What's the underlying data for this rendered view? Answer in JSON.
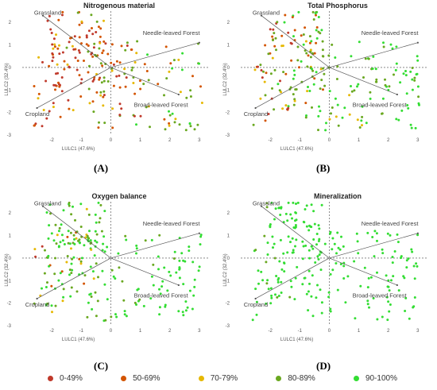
{
  "panel_labels": [
    "(A)",
    "(B)",
    "(C)",
    "(D)"
  ],
  "legend": [
    {
      "label": "0-49%",
      "color": "#c0392b"
    },
    {
      "label": "50-69%",
      "color": "#d35400"
    },
    {
      "label": "70-79%",
      "color": "#e6b800"
    },
    {
      "label": "80-89%",
      "color": "#6aa820"
    },
    {
      "label": "90-100%",
      "color": "#33dd33"
    }
  ],
  "chart_data": [
    {
      "type": "scatter",
      "title": "Nitrogenous material",
      "xlabel": "LULC1    (47.6%)",
      "ylabel": "LULC2    (32.4%)",
      "xlim": [
        -3,
        3.3
      ],
      "ylim": [
        -3,
        2.5
      ],
      "xticks": [
        "-2",
        "-1",
        "0",
        "1",
        "2",
        "3"
      ],
      "yticks": [
        "2",
        "1",
        "0",
        "-1",
        "-2",
        "-3"
      ],
      "vectors": [
        {
          "name": "Grassland",
          "x": -2.3,
          "y": 2.3
        },
        {
          "name": "Needle-leaved Forest",
          "x": 3.0,
          "y": 1.1
        },
        {
          "name": "Broad-leaved Forest",
          "x": 2.3,
          "y": -1.2
        },
        {
          "name": "Cropland",
          "x": -2.5,
          "y": -1.8
        }
      ],
      "class_mix": [
        0.35,
        0.17,
        0.08,
        0.22,
        0.18
      ]
    },
    {
      "type": "scatter",
      "title": "Total Phosphorus",
      "xlabel": "LULC1    (47.6%)",
      "ylabel": "LULC2    (32.4%)",
      "xlim": [
        -3,
        3.3
      ],
      "ylim": [
        -3,
        2.5
      ],
      "xticks": [
        "-2",
        "-1",
        "0",
        "1",
        "2",
        "3"
      ],
      "yticks": [
        "2",
        "1",
        "0",
        "-1",
        "-2",
        "-3"
      ],
      "vectors": [
        {
          "name": "Grassland",
          "x": -2.3,
          "y": 2.3
        },
        {
          "name": "Needle-leaved Forest",
          "x": 3.0,
          "y": 1.1
        },
        {
          "name": "Broad-leaved Forest",
          "x": 2.3,
          "y": -1.2
        },
        {
          "name": "Cropland",
          "x": -2.5,
          "y": -1.8
        }
      ],
      "class_mix": [
        0.16,
        0.12,
        0.08,
        0.18,
        0.46
      ]
    },
    {
      "type": "scatter",
      "title": "Oxygen balance",
      "xlabel": "LULC1    (47.6%)",
      "ylabel": "LULC2    (32.4%)",
      "xlim": [
        -3,
        3.3
      ],
      "ylim": [
        -3,
        2.5
      ],
      "xticks": [
        "-2",
        "-1",
        "0",
        "1",
        "2",
        "3"
      ],
      "yticks": [
        "2",
        "1",
        "0",
        "-1",
        "-2",
        "-3"
      ],
      "vectors": [
        {
          "name": "Grassland",
          "x": -2.3,
          "y": 2.3
        },
        {
          "name": "Needle-leaved Forest",
          "x": 3.0,
          "y": 1.1
        },
        {
          "name": "Broad-leaved Forest",
          "x": 2.3,
          "y": -1.2
        },
        {
          "name": "Cropland",
          "x": -2.5,
          "y": -1.8
        }
      ],
      "class_mix": [
        0.05,
        0.1,
        0.07,
        0.2,
        0.58
      ]
    },
    {
      "type": "scatter",
      "title": "Mineralization",
      "xlabel": "LULC1    (47.6%)",
      "ylabel": "LULC2    (32.4%)",
      "xlim": [
        -3,
        3.3
      ],
      "ylim": [
        -3,
        2.5
      ],
      "xticks": [
        "-2",
        "-1",
        "0",
        "1",
        "2",
        "3"
      ],
      "yticks": [
        "2",
        "1",
        "0",
        "-1",
        "-2",
        "-3"
      ],
      "vectors": [
        {
          "name": "Grassland",
          "x": -2.3,
          "y": 2.3
        },
        {
          "name": "Needle-leaved Forest",
          "x": 3.0,
          "y": 1.1
        },
        {
          "name": "Broad-leaved Forest",
          "x": 2.3,
          "y": -1.2
        },
        {
          "name": "Cropland",
          "x": -2.5,
          "y": -1.8
        }
      ],
      "class_mix": [
        0.0,
        0.0,
        0.0,
        0.12,
        0.88
      ]
    }
  ]
}
